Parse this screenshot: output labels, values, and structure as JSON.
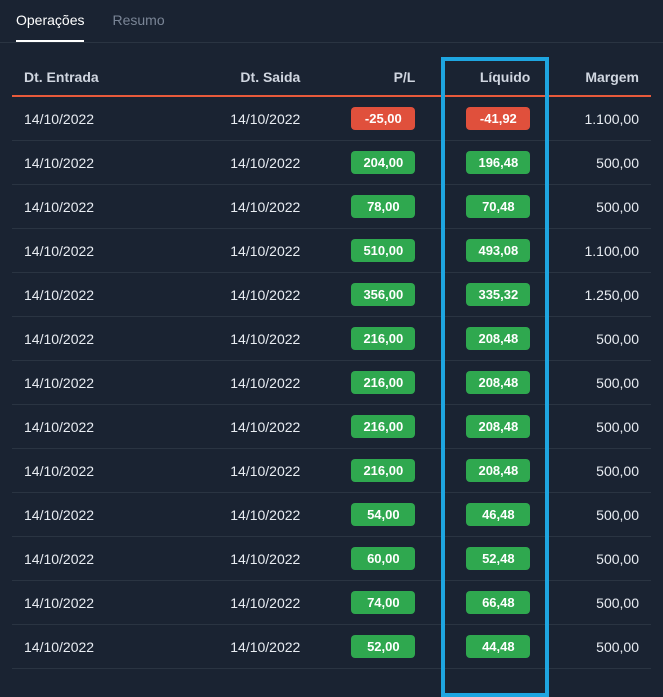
{
  "tabs": {
    "operations": "Operações",
    "summary": "Resumo"
  },
  "columns": {
    "entry": "Dt. Entrada",
    "exit": "Dt. Saida",
    "pl": "P/L",
    "net": "Líquido",
    "margin": "Margem"
  },
  "rows": [
    {
      "entry": "14/10/2022",
      "exit": "14/10/2022",
      "pl": "-25,00",
      "pl_class": "badge-negative",
      "net": "-41,92",
      "net_class": "badge-negative",
      "margin": "1.100,00"
    },
    {
      "entry": "14/10/2022",
      "exit": "14/10/2022",
      "pl": "204,00",
      "pl_class": "badge-positive",
      "net": "196,48",
      "net_class": "badge-positive",
      "margin": "500,00"
    },
    {
      "entry": "14/10/2022",
      "exit": "14/10/2022",
      "pl": "78,00",
      "pl_class": "badge-positive",
      "net": "70,48",
      "net_class": "badge-positive",
      "margin": "500,00"
    },
    {
      "entry": "14/10/2022",
      "exit": "14/10/2022",
      "pl": "510,00",
      "pl_class": "badge-positive",
      "net": "493,08",
      "net_class": "badge-positive",
      "margin": "1.100,00"
    },
    {
      "entry": "14/10/2022",
      "exit": "14/10/2022",
      "pl": "356,00",
      "pl_class": "badge-positive",
      "net": "335,32",
      "net_class": "badge-positive",
      "margin": "1.250,00"
    },
    {
      "entry": "14/10/2022",
      "exit": "14/10/2022",
      "pl": "216,00",
      "pl_class": "badge-positive",
      "net": "208,48",
      "net_class": "badge-positive",
      "margin": "500,00"
    },
    {
      "entry": "14/10/2022",
      "exit": "14/10/2022",
      "pl": "216,00",
      "pl_class": "badge-positive",
      "net": "208,48",
      "net_class": "badge-positive",
      "margin": "500,00"
    },
    {
      "entry": "14/10/2022",
      "exit": "14/10/2022",
      "pl": "216,00",
      "pl_class": "badge-positive",
      "net": "208,48",
      "net_class": "badge-positive",
      "margin": "500,00"
    },
    {
      "entry": "14/10/2022",
      "exit": "14/10/2022",
      "pl": "216,00",
      "pl_class": "badge-positive",
      "net": "208,48",
      "net_class": "badge-positive",
      "margin": "500,00"
    },
    {
      "entry": "14/10/2022",
      "exit": "14/10/2022",
      "pl": "54,00",
      "pl_class": "badge-positive",
      "net": "46,48",
      "net_class": "badge-positive",
      "margin": "500,00"
    },
    {
      "entry": "14/10/2022",
      "exit": "14/10/2022",
      "pl": "60,00",
      "pl_class": "badge-positive",
      "net": "52,48",
      "net_class": "badge-positive",
      "margin": "500,00"
    },
    {
      "entry": "14/10/2022",
      "exit": "14/10/2022",
      "pl": "74,00",
      "pl_class": "badge-positive",
      "net": "66,48",
      "net_class": "badge-positive",
      "margin": "500,00"
    },
    {
      "entry": "14/10/2022",
      "exit": "14/10/2022",
      "pl": "52,00",
      "pl_class": "badge-positive",
      "net": "44,48",
      "net_class": "badge-positive",
      "margin": "500,00"
    }
  ]
}
